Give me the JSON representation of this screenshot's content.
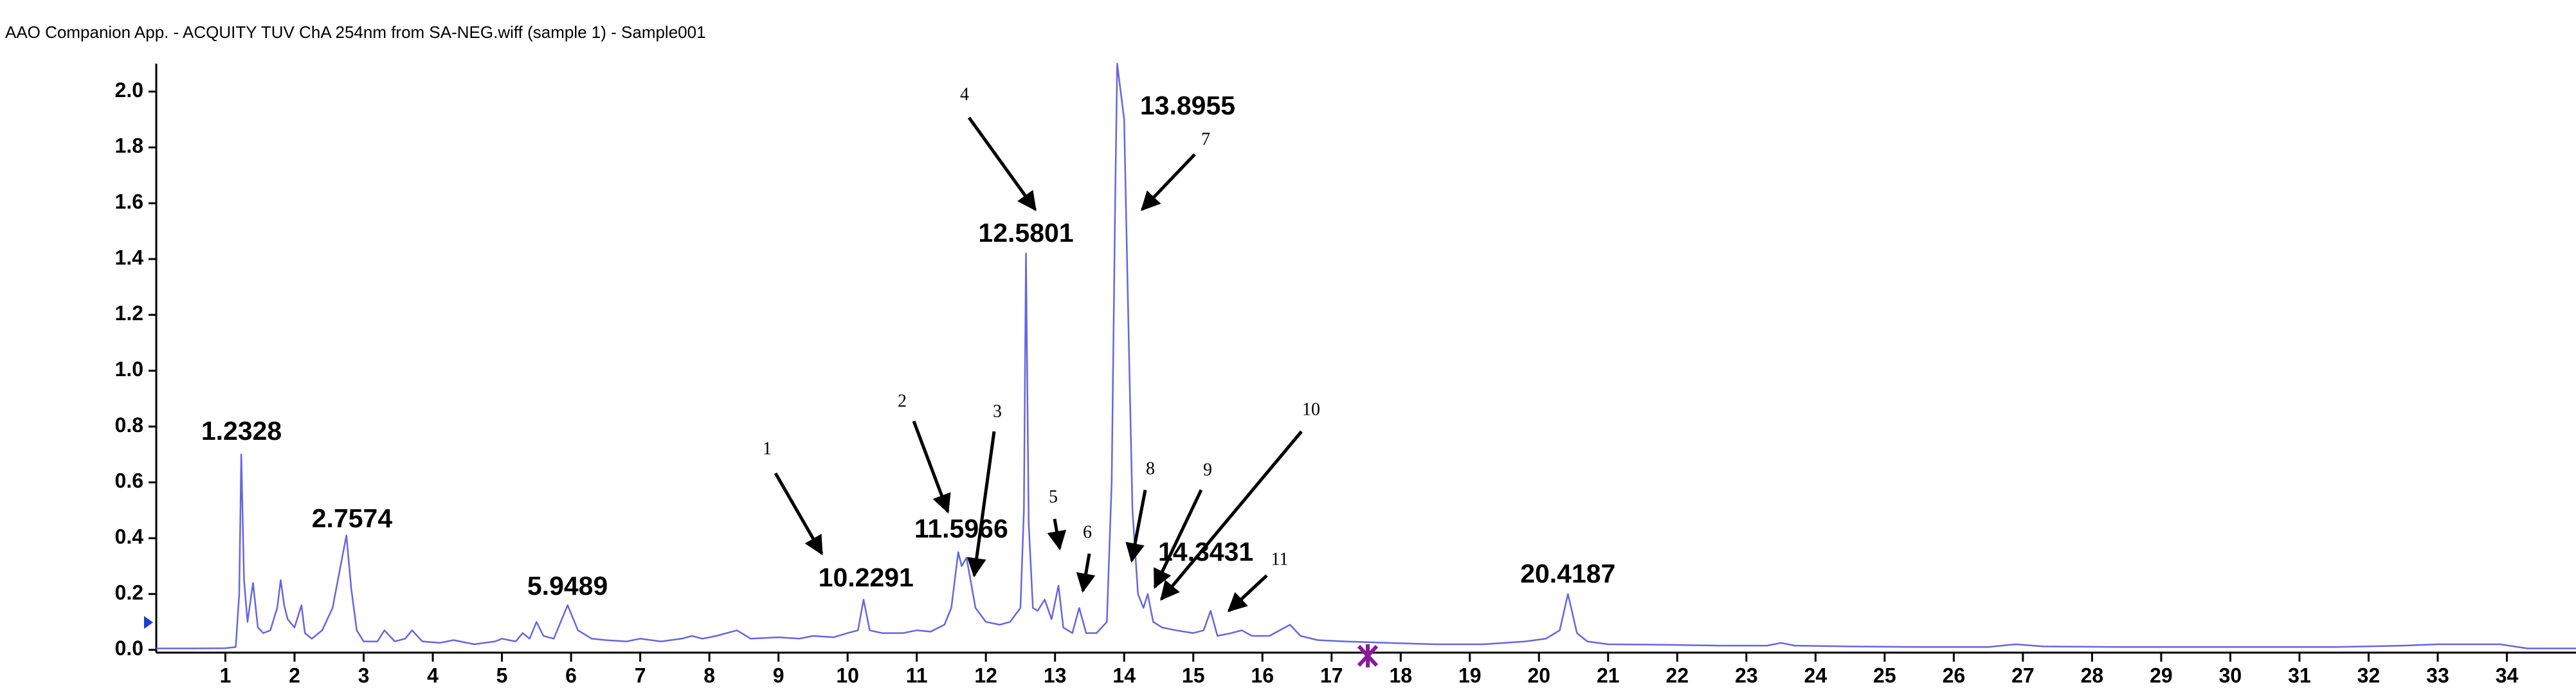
{
  "chart_data": {
    "type": "line",
    "title": "AAO Companion App. - ACQUITY TUV ChA 254nm from SA-NEG.wiff (sample 1) - Sample001",
    "color": "#6666dd",
    "x": [
      0,
      0.5,
      1.0,
      1.15,
      1.2,
      1.23,
      1.27,
      1.32,
      1.4,
      1.47,
      1.55,
      1.65,
      1.75,
      1.8,
      1.85,
      1.9,
      2.0,
      2.1,
      2.15,
      2.25,
      2.4,
      2.55,
      2.65,
      2.75,
      2.82,
      2.9,
      3.0,
      3.2,
      3.3,
      3.45,
      3.6,
      3.7,
      3.85,
      4.1,
      4.3,
      4.6,
      4.9,
      5.0,
      5.2,
      5.3,
      5.4,
      5.5,
      5.6,
      5.75,
      5.95,
      6.1,
      6.3,
      6.5,
      6.8,
      7.0,
      7.3,
      7.6,
      7.75,
      7.9,
      8.1,
      8.4,
      8.6,
      9.0,
      9.3,
      9.5,
      9.8,
      10.0,
      10.15,
      10.23,
      10.32,
      10.5,
      10.8,
      11.0,
      11.2,
      11.4,
      11.5,
      11.6,
      11.65,
      11.72,
      11.85,
      12.0,
      12.2,
      12.35,
      12.5,
      12.55,
      12.58,
      12.62,
      12.68,
      12.75,
      12.85,
      12.95,
      13.05,
      13.12,
      13.25,
      13.35,
      13.45,
      13.6,
      13.75,
      13.82,
      13.87,
      13.9,
      14.0,
      14.05,
      14.12,
      14.2,
      14.28,
      14.34,
      14.42,
      14.55,
      14.75,
      15.0,
      15.15,
      15.25,
      15.35,
      15.55,
      15.7,
      15.85,
      16.1,
      16.4,
      16.55,
      16.8,
      17.2,
      17.8,
      18.5,
      19.2,
      19.8,
      20.1,
      20.3,
      20.42,
      20.55,
      20.7,
      21.0,
      21.8,
      22.6,
      23.3,
      23.5,
      23.7,
      24.5,
      25.5,
      26.5,
      26.9,
      27.3,
      28.5,
      30.0,
      31.5,
      32.5,
      33.0,
      33.6,
      33.9,
      34.3,
      35.0
    ],
    "values": [
      0.005,
      0.005,
      0.006,
      0.01,
      0.2,
      0.7,
      0.25,
      0.1,
      0.24,
      0.08,
      0.06,
      0.07,
      0.15,
      0.25,
      0.16,
      0.11,
      0.08,
      0.16,
      0.06,
      0.04,
      0.07,
      0.15,
      0.28,
      0.41,
      0.22,
      0.07,
      0.03,
      0.03,
      0.07,
      0.03,
      0.04,
      0.07,
      0.03,
      0.025,
      0.035,
      0.02,
      0.03,
      0.04,
      0.03,
      0.06,
      0.04,
      0.1,
      0.05,
      0.04,
      0.16,
      0.07,
      0.04,
      0.035,
      0.03,
      0.04,
      0.03,
      0.04,
      0.05,
      0.04,
      0.05,
      0.07,
      0.04,
      0.045,
      0.04,
      0.05,
      0.045,
      0.06,
      0.07,
      0.18,
      0.07,
      0.06,
      0.06,
      0.07,
      0.065,
      0.09,
      0.15,
      0.35,
      0.3,
      0.33,
      0.15,
      0.1,
      0.09,
      0.1,
      0.15,
      0.5,
      1.42,
      0.45,
      0.15,
      0.14,
      0.18,
      0.11,
      0.23,
      0.08,
      0.06,
      0.15,
      0.06,
      0.06,
      0.1,
      0.6,
      1.6,
      2.1,
      1.9,
      1.3,
      0.5,
      0.2,
      0.15,
      0.2,
      0.1,
      0.08,
      0.07,
      0.06,
      0.07,
      0.14,
      0.05,
      0.06,
      0.07,
      0.05,
      0.05,
      0.09,
      0.05,
      0.035,
      0.03,
      0.025,
      0.02,
      0.02,
      0.03,
      0.04,
      0.07,
      0.2,
      0.06,
      0.03,
      0.02,
      0.018,
      0.015,
      0.015,
      0.025,
      0.015,
      0.012,
      0.01,
      0.01,
      0.02,
      0.012,
      0.01,
      0.01,
      0.01,
      0.015,
      0.02,
      0.02,
      0.02,
      0.005,
      0.005
    ],
    "xlim": [
      0,
      35
    ],
    "ylim": [
      -0.01,
      2.1
    ],
    "xticks": [
      1,
      2,
      3,
      4,
      5,
      6,
      7,
      8,
      9,
      10,
      11,
      12,
      13,
      14,
      15,
      16,
      17,
      18,
      19,
      20,
      21,
      22,
      23,
      24,
      25,
      26,
      27,
      28,
      29,
      30,
      31,
      32,
      33,
      34
    ],
    "yticks": [
      {
        "value": 0,
        "label": "0.0"
      },
      0.2,
      0.4,
      0.6,
      0.8,
      {
        "value": 1,
        "label": "1.0"
      },
      1.2,
      1.4,
      1.6,
      1.8,
      {
        "value": 2,
        "label": "2.0"
      }
    ],
    "peak_labels": [
      {
        "value": 1.2328,
        "label": "1.2328"
      },
      {
        "value": 2.7574,
        "label": "2.7574"
      },
      {
        "value": 5.9489,
        "label": "5.9489"
      },
      {
        "value": 10.2291,
        "label": "10.2291"
      },
      {
        "value": 11.5966,
        "label": "11.5966"
      },
      {
        "value": 12.5801,
        "label": "12.5801"
      },
      {
        "value": 13.8955,
        "label": "13.8955"
      },
      {
        "value": 14.3431,
        "label": "14.3431"
      },
      {
        "value": 20.4187,
        "label": "20.4187"
      }
    ],
    "arrow_labels": [
      "1",
      "2",
      "3",
      "4",
      "5",
      "6",
      "7",
      "8",
      "9",
      "10",
      "11"
    ]
  }
}
